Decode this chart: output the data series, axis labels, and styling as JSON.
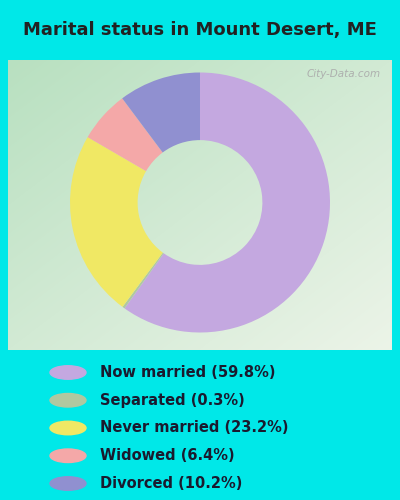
{
  "title": "Marital status in Mount Desert, ME",
  "slices": [
    59.8,
    0.3,
    23.2,
    6.4,
    10.2
  ],
  "labels": [
    "Now married (59.8%)",
    "Separated (0.3%)",
    "Never married (23.2%)",
    "Widowed (6.4%)",
    "Divorced (10.2%)"
  ],
  "colors": [
    "#c4a8e0",
    "#b0c8a0",
    "#f0e864",
    "#f4a8a8",
    "#9090d0"
  ],
  "bg_cyan": "#00e8e8",
  "chart_bg_tl": "#b8e0c0",
  "chart_bg_br": "#e8f0e0",
  "title_fontsize": 13,
  "legend_fontsize": 10.5,
  "watermark": "City-Data.com"
}
